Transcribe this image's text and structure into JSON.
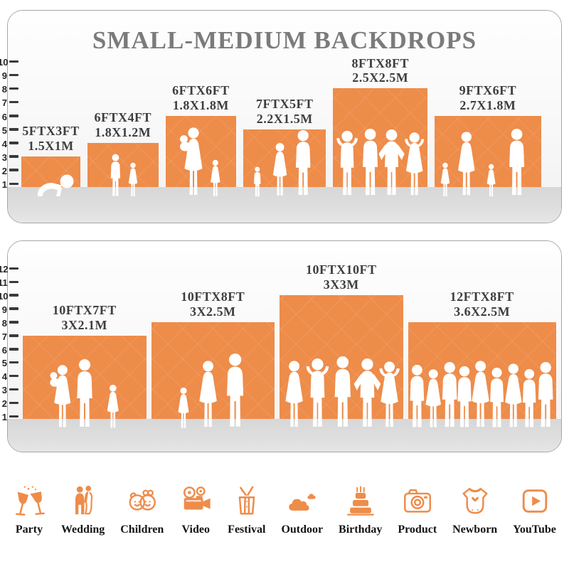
{
  "title": "SMALL-MEDIUM BACKDROPS",
  "colors": {
    "accent_orange": "#EE8C4A",
    "floor_gray": "#DBDBDB",
    "title_gray": "#7B7B7B",
    "label_dark": "#3E3E3E",
    "tick_dark": "#3A3A3A",
    "panel_border": "#A6A6A6",
    "silhouette_white": "#FFFFFF",
    "category_text": "#141414"
  },
  "chart_data": {
    "type": "bar",
    "title": "SMALL-MEDIUM BACKDROPS",
    "ylabel": "",
    "xlabel": "",
    "legend": "none",
    "grid": false,
    "panels": [
      {
        "name": "top-panel",
        "ruler_min": 1,
        "ruler_max": 10,
        "items": [
          {
            "ft_label": "5FTX3FT",
            "m_label": "1.5X1M",
            "width_ft": 5,
            "height_ft": 3,
            "people": [
              "crawling-baby"
            ]
          },
          {
            "ft_label": "6FTX4FT",
            "m_label": "1.8X1.2M",
            "width_ft": 6,
            "height_ft": 4,
            "people": [
              "boy",
              "girl"
            ]
          },
          {
            "ft_label": "6FTX6FT",
            "m_label": "1.8X1.8M",
            "width_ft": 6,
            "height_ft": 6,
            "people": [
              "mother-holding-baby",
              "girl"
            ]
          },
          {
            "ft_label": "7FTX5FT",
            "m_label": "2.2X1.5M",
            "width_ft": 7,
            "height_ft": 5,
            "people": [
              "toddler",
              "woman",
              "man"
            ]
          },
          {
            "ft_label": "8FTX8FT",
            "m_label": "2.5X2.5M",
            "width_ft": 8,
            "height_ft": 8,
            "people": [
              "man-arms-up",
              "man",
              "man-hands-on-hips",
              "woman-arms-up"
            ]
          },
          {
            "ft_label": "9FTX6FT",
            "m_label": "2.7X1.8M",
            "width_ft": 9,
            "height_ft": 6,
            "people": [
              "girl",
              "woman",
              "girl",
              "man"
            ]
          }
        ]
      },
      {
        "name": "bottom-panel",
        "ruler_min": 1,
        "ruler_max": 12,
        "items": [
          {
            "ft_label": "10FTX7FT",
            "m_label": "3X2.1M",
            "width_ft": 10,
            "height_ft": 7,
            "people": [
              "mother-holding-baby",
              "man",
              "girl"
            ]
          },
          {
            "ft_label": "10FTX8FT",
            "m_label": "3X2.5M",
            "width_ft": 10,
            "height_ft": 8,
            "people": [
              "girl",
              "woman",
              "man"
            ]
          },
          {
            "ft_label": "10FTX10FT",
            "m_label": "3X3M",
            "width_ft": 10,
            "height_ft": 10,
            "people": [
              "woman",
              "man-arms-up",
              "man",
              "man-hands-on-hips",
              "woman-arms-up"
            ]
          },
          {
            "ft_label": "12FTX8FT",
            "m_label": "3.6X2.5M",
            "width_ft": 12,
            "height_ft": 8,
            "people": [
              "man",
              "woman",
              "man",
              "man",
              "woman",
              "man",
              "woman",
              "man",
              "man"
            ]
          }
        ]
      }
    ]
  },
  "categories": [
    {
      "label": "Party",
      "icon": "party-icon"
    },
    {
      "label": "Wedding",
      "icon": "wedding-icon"
    },
    {
      "label": "Children",
      "icon": "children-icon"
    },
    {
      "label": "Video",
      "icon": "video-icon"
    },
    {
      "label": "Festival",
      "icon": "festival-icon"
    },
    {
      "label": "Outdoor",
      "icon": "outdoor-icon"
    },
    {
      "label": "Birthday",
      "icon": "birthday-icon"
    },
    {
      "label": "Product",
      "icon": "product-icon"
    },
    {
      "label": "Newborn",
      "icon": "newborn-icon"
    },
    {
      "label": "YouTube",
      "icon": "youtube-icon"
    }
  ]
}
